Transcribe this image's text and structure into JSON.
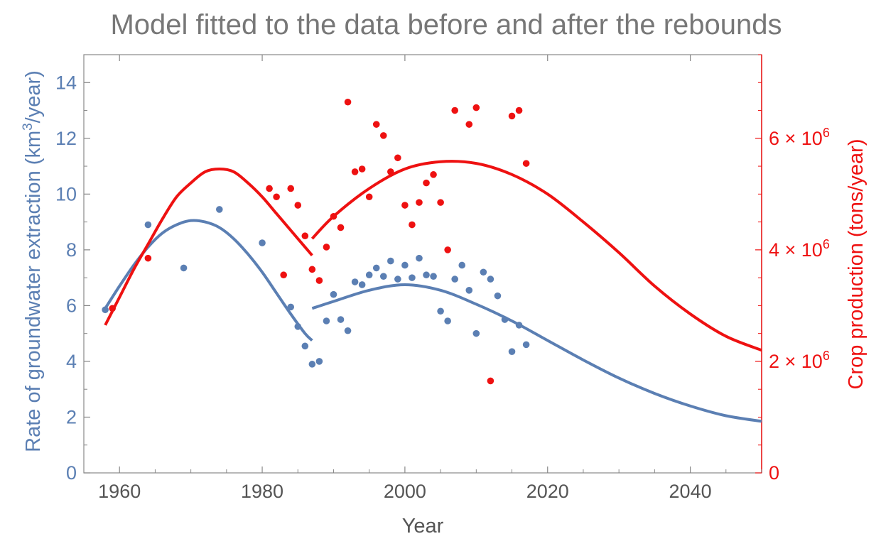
{
  "chart_data": {
    "type": "scatter",
    "title": "Model fitted to the data before and after the rebounds",
    "xlabel": "Year",
    "ylabel_left": {
      "prefix": "Rate of groundwater extraction (km",
      "superscript": "3",
      "suffix": "/year)"
    },
    "ylabel_right": "Crop production (tons/year)",
    "xlim": [
      1955,
      2050
    ],
    "ylim_left": [
      0,
      15
    ],
    "ylim_right": [
      0,
      7500000
    ],
    "x_ticks": [
      {
        "value": 1960,
        "label": "1960"
      },
      {
        "value": 1980,
        "label": "1980"
      },
      {
        "value": 2000,
        "label": "2000"
      },
      {
        "value": 2020,
        "label": "2020"
      },
      {
        "value": 2040,
        "label": "2040"
      }
    ],
    "y_left_ticks": [
      {
        "value": 0,
        "label": "0"
      },
      {
        "value": 2,
        "label": "2"
      },
      {
        "value": 4,
        "label": "4"
      },
      {
        "value": 6,
        "label": "6"
      },
      {
        "value": 8,
        "label": "8"
      },
      {
        "value": 10,
        "label": "10"
      },
      {
        "value": 12,
        "label": "12"
      },
      {
        "value": 14,
        "label": "14"
      }
    ],
    "y_right_ticks": [
      {
        "value": 0,
        "label": "0",
        "exp": ""
      },
      {
        "value": 2000000,
        "label": "2 × 10",
        "exp": "6"
      },
      {
        "value": 4000000,
        "label": "4 × 10",
        "exp": "6"
      },
      {
        "value": 6000000,
        "label": "6 × 10",
        "exp": "6"
      }
    ],
    "colors": {
      "groundwater": "#5b7fb3",
      "crop": "#ee1111",
      "title": "#777777",
      "axis_frame": "#888888",
      "tick_text": "#555555"
    },
    "series": [
      {
        "name": "",
        "axis": "left",
        "kind": "points",
        "color": "#5b7fb3",
        "x": [
          1958,
          1964,
          1969,
          1974,
          1980,
          1984,
          1985,
          1986,
          1987,
          1988,
          1989,
          1990,
          1991,
          1992,
          1993,
          1994,
          1995,
          1996,
          1997,
          1998,
          1999,
          2000,
          2001,
          2002,
          2003,
          2004,
          2005,
          2006,
          2007,
          2008,
          2009,
          2010,
          2011,
          2012,
          2013,
          2014,
          2015,
          2016,
          2017
        ],
        "y": [
          5.85,
          8.9,
          7.35,
          9.45,
          8.25,
          5.95,
          5.25,
          4.55,
          3.9,
          4.0,
          5.45,
          6.4,
          5.5,
          5.1,
          6.85,
          6.75,
          7.1,
          7.35,
          7.05,
          7.6,
          6.95,
          7.45,
          7.0,
          7.7,
          7.1,
          7.05,
          5.8,
          5.45,
          6.95,
          7.45,
          6.55,
          5.0,
          7.2,
          6.95,
          6.35,
          5.5,
          4.35,
          5.3,
          4.6
        ]
      },
      {
        "name": "",
        "axis": "right",
        "kind": "points",
        "color": "#ee1111",
        "x": [
          1959,
          1964,
          1981,
          1982,
          1983,
          1984,
          1985,
          1986,
          1987,
          1988,
          1989,
          1990,
          1991,
          1992,
          1993,
          1994,
          1995,
          1996,
          1997,
          1998,
          1999,
          2000,
          2001,
          2002,
          2003,
          2004,
          2005,
          2006,
          2007,
          2009,
          2010,
          2012,
          2015,
          2016,
          2017
        ],
        "y": [
          2950000,
          3850000,
          5100000,
          4950000,
          3550000,
          5100000,
          4800000,
          4250000,
          3650000,
          3450000,
          4050000,
          4600000,
          4400000,
          6650000,
          5400000,
          5450000,
          4950000,
          6250000,
          6050000,
          5400000,
          5650000,
          4800000,
          4450000,
          4850000,
          5200000,
          5350000,
          4850000,
          4000000,
          6500000,
          6250000,
          6550000,
          1650000,
          6400000,
          6500000,
          5550000
        ]
      },
      {
        "name": "",
        "axis": "left",
        "kind": "curve",
        "color": "#5b7fb3",
        "x": [
          1958,
          1960,
          1962,
          1964,
          1966,
          1968,
          1970,
          1972,
          1974,
          1976,
          1978,
          1980,
          1982,
          1984,
          1986,
          1987
        ],
        "y": [
          5.9,
          6.7,
          7.45,
          8.1,
          8.6,
          8.9,
          9.05,
          9.0,
          8.8,
          8.4,
          7.85,
          7.2,
          6.45,
          5.7,
          5.0,
          4.75
        ]
      },
      {
        "name": "",
        "axis": "left",
        "kind": "curve",
        "color": "#5b7fb3",
        "x": [
          1987,
          1990,
          1995,
          2000,
          2005,
          2010,
          2015,
          2020,
          2025,
          2030,
          2035,
          2040,
          2045,
          2050
        ],
        "y": [
          5.9,
          6.15,
          6.55,
          6.75,
          6.55,
          6.05,
          5.45,
          4.75,
          4.05,
          3.4,
          2.85,
          2.4,
          2.05,
          1.85
        ]
      },
      {
        "name": "",
        "axis": "right",
        "kind": "curve",
        "color": "#ee1111",
        "x": [
          1958,
          1960,
          1962,
          1964,
          1966,
          1968,
          1970,
          1972,
          1974,
          1976,
          1978,
          1980,
          1982,
          1984,
          1986,
          1987
        ],
        "y": [
          2650000,
          3150000,
          3650000,
          4100000,
          4550000,
          4950000,
          5200000,
          5400000,
          5450000,
          5400000,
          5200000,
          4950000,
          4650000,
          4350000,
          4050000,
          3900000
        ]
      },
      {
        "name": "",
        "axis": "right",
        "kind": "curve",
        "color": "#ee1111",
        "x": [
          1987,
          1990,
          1995,
          2000,
          2005,
          2010,
          2015,
          2020,
          2025,
          2030,
          2035,
          2040,
          2045,
          2050
        ],
        "y": [
          4200000,
          4600000,
          5100000,
          5450000,
          5580000,
          5550000,
          5350000,
          5000000,
          4500000,
          3950000,
          3350000,
          2850000,
          2450000,
          2200000
        ]
      }
    ]
  }
}
